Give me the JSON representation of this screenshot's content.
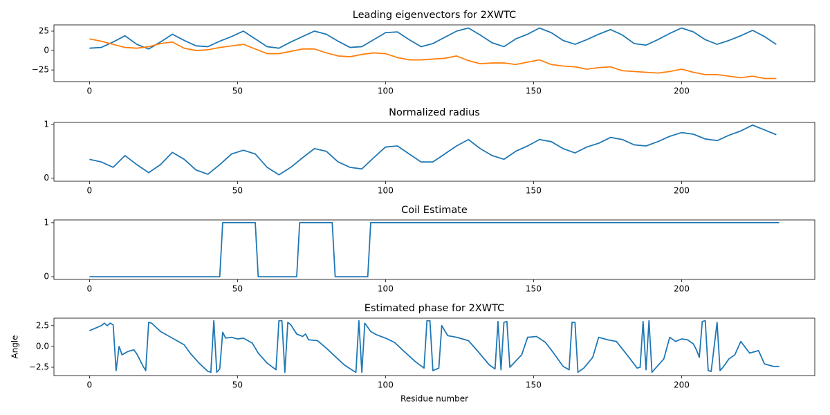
{
  "chart_data": [
    {
      "type": "line",
      "title": "Leading eigenvectors for 2XWTC",
      "x": [
        0,
        4,
        8,
        12,
        16,
        20,
        24,
        28,
        32,
        36,
        40,
        44,
        48,
        52,
        56,
        60,
        64,
        68,
        72,
        76,
        80,
        84,
        88,
        92,
        96,
        100,
        104,
        108,
        112,
        116,
        120,
        124,
        128,
        132,
        136,
        140,
        144,
        148,
        152,
        156,
        160,
        164,
        168,
        172,
        176,
        180,
        184,
        188,
        192,
        196,
        200,
        204,
        208,
        212,
        216,
        220,
        224,
        228,
        232
      ],
      "series": [
        {
          "color": "#1f77b4",
          "values": [
            3,
            4,
            11,
            19,
            8,
            2,
            11,
            21,
            13,
            6,
            5,
            12,
            18,
            25,
            15,
            5,
            3,
            11,
            18,
            25,
            21,
            12,
            4,
            5,
            14,
            23,
            24,
            14,
            5,
            9,
            17,
            25,
            29,
            20,
            10,
            5,
            15,
            21,
            29,
            23,
            13,
            8,
            14,
            21,
            27,
            20,
            9,
            7,
            14,
            22,
            29,
            24,
            14,
            8,
            13,
            19,
            26,
            18,
            8
          ]
        },
        {
          "color": "#ff7f0e",
          "values": [
            15,
            12,
            8,
            4,
            3,
            5,
            9,
            11,
            3,
            0,
            1,
            4,
            6,
            8,
            2,
            -4,
            -4,
            -1,
            2,
            2,
            -3,
            -7,
            -8,
            -5,
            -3,
            -4,
            -9,
            -12,
            -12,
            -11,
            -10,
            -7,
            -13,
            -17,
            -16,
            -16,
            -18,
            -15,
            -12,
            -18,
            -20,
            -21,
            -24,
            -22,
            -21,
            -26,
            -27,
            -28,
            -29,
            -27,
            -24,
            -28,
            -31,
            -31,
            -33,
            -35,
            -33,
            -36,
            -36
          ]
        }
      ],
      "xlim": [
        -12,
        245
      ],
      "ylim": [
        -40,
        33
      ],
      "xticks": [
        0,
        50,
        100,
        150,
        200
      ],
      "yticks": [
        {
          "value": -25,
          "label": "−25"
        },
        0,
        25
      ]
    },
    {
      "type": "line",
      "title": "Normalized radius",
      "x": [
        0,
        4,
        8,
        12,
        16,
        20,
        24,
        28,
        32,
        36,
        40,
        44,
        48,
        52,
        56,
        60,
        64,
        68,
        72,
        76,
        80,
        84,
        88,
        92,
        96,
        100,
        104,
        108,
        112,
        116,
        120,
        124,
        128,
        132,
        136,
        140,
        144,
        148,
        152,
        156,
        160,
        164,
        168,
        172,
        176,
        180,
        184,
        188,
        192,
        196,
        200,
        204,
        208,
        212,
        216,
        220,
        224,
        228,
        232
      ],
      "series": [
        {
          "color": "#1f77b4",
          "values": [
            0.35,
            0.3,
            0.2,
            0.42,
            0.25,
            0.1,
            0.25,
            0.48,
            0.35,
            0.15,
            0.07,
            0.25,
            0.45,
            0.52,
            0.45,
            0.2,
            0.06,
            0.2,
            0.38,
            0.55,
            0.5,
            0.3,
            0.2,
            0.17,
            0.38,
            0.58,
            0.6,
            0.45,
            0.3,
            0.3,
            0.45,
            0.6,
            0.72,
            0.55,
            0.42,
            0.35,
            0.5,
            0.6,
            0.72,
            0.68,
            0.55,
            0.47,
            0.58,
            0.65,
            0.76,
            0.72,
            0.62,
            0.6,
            0.68,
            0.78,
            0.85,
            0.82,
            0.73,
            0.7,
            0.8,
            0.88,
            0.99,
            0.9,
            0.81
          ]
        }
      ],
      "xlim": [
        -12,
        245
      ],
      "ylim": [
        -0.06,
        1.04
      ],
      "xticks": [
        0,
        50,
        100,
        150,
        200
      ],
      "yticks": [
        0,
        1
      ]
    },
    {
      "type": "line",
      "title": "Coil Estimate",
      "x": [
        0,
        44,
        45,
        56,
        57,
        70,
        71,
        82,
        83,
        94,
        95,
        233
      ],
      "series": [
        {
          "color": "#1f77b4",
          "values": [
            0,
            0,
            1,
            1,
            0,
            0,
            1,
            1,
            0,
            0,
            1,
            1
          ]
        }
      ],
      "xlim": [
        -12,
        245
      ],
      "ylim": [
        -0.05,
        1.05
      ],
      "xticks": [
        0,
        50,
        100,
        150,
        200
      ],
      "yticks": [
        0,
        1
      ]
    },
    {
      "type": "line",
      "title": "Estimated phase for 2XWTC",
      "xlabel": "Residue number",
      "ylabel": "Angle",
      "x": [
        0,
        2,
        4,
        5,
        6,
        7,
        8,
        9,
        10,
        11,
        13,
        15,
        16,
        18,
        19,
        20,
        21,
        24,
        28,
        32,
        34,
        37,
        40,
        41,
        42,
        43,
        44,
        45,
        46,
        48,
        50,
        52,
        55,
        57,
        60,
        63,
        64,
        65,
        66,
        67,
        68,
        70,
        72,
        73,
        74,
        77,
        80,
        83,
        86,
        89,
        90,
        91,
        92,
        93,
        95,
        97,
        100,
        103,
        106,
        110,
        113,
        114,
        115,
        116,
        118,
        119,
        121,
        124,
        128,
        131,
        135,
        137,
        138,
        139,
        140,
        141,
        142,
        146,
        148,
        151,
        154,
        157,
        160,
        162,
        163,
        164,
        165,
        167,
        170,
        172,
        175,
        178,
        182,
        185,
        186,
        187,
        188,
        189,
        190,
        192,
        194,
        196,
        198,
        200,
        202,
        204,
        205,
        206,
        207,
        208,
        209,
        210,
        212,
        213,
        214,
        216,
        218,
        220,
        223,
        226,
        228,
        231,
        233
      ],
      "series": [
        {
          "color": "#1f77b4",
          "values": [
            1.9,
            2.2,
            2.5,
            2.8,
            2.5,
            2.8,
            2.6,
            -2.9,
            0,
            -1,
            -0.6,
            -0.4,
            -0.9,
            -2.3,
            -2.9,
            2.9,
            2.8,
            1.8,
            1.0,
            0.2,
            -0.8,
            -2,
            -3,
            -3.1,
            3.1,
            -3.1,
            -2.7,
            1.7,
            1,
            1.1,
            0.9,
            1.0,
            0.4,
            -0.8,
            -2,
            -2.8,
            3.1,
            3.1,
            -3.1,
            2.9,
            2.6,
            1.5,
            1.2,
            1.5,
            0.8,
            0.7,
            -0.2,
            -1.2,
            -2.2,
            -2.9,
            -3.1,
            3.1,
            -3.1,
            2.8,
            1.8,
            1.4,
            1.0,
            0.5,
            -0.5,
            -1.8,
            -2.6,
            3.1,
            3.1,
            -2.9,
            -2.6,
            2.5,
            1.3,
            1.1,
            0.7,
            -0.5,
            -2.2,
            -2.7,
            3,
            -2.8,
            2.9,
            3,
            -2.5,
            -1,
            1.1,
            1.2,
            0.5,
            -0.9,
            -2.4,
            -2.8,
            2.9,
            2.9,
            -3.1,
            -2.6,
            -1.3,
            1.1,
            0.8,
            0.6,
            -1.2,
            -2.6,
            -2.5,
            3,
            -2.8,
            3.1,
            -3.1,
            -2.3,
            -1.5,
            1.1,
            0.6,
            0.9,
            0.8,
            0.3,
            -0.4,
            -1.3,
            3.0,
            3.1,
            -2.9,
            -3.0,
            2.9,
            -2.9,
            -2.5,
            -1.5,
            -1.0,
            0.6,
            -0.8,
            -0.5,
            -2.1,
            -2.4,
            -2.4
          ]
        }
      ],
      "xlim": [
        -12,
        245
      ],
      "ylim": [
        -3.5,
        3.4
      ],
      "xticks": [
        0,
        50,
        100,
        150,
        200
      ],
      "yticks": [
        {
          "value": -2.5,
          "label": "−2.5"
        },
        {
          "value": 0,
          "label": "0.0"
        },
        {
          "value": 2.5,
          "label": "2.5"
        }
      ]
    }
  ]
}
